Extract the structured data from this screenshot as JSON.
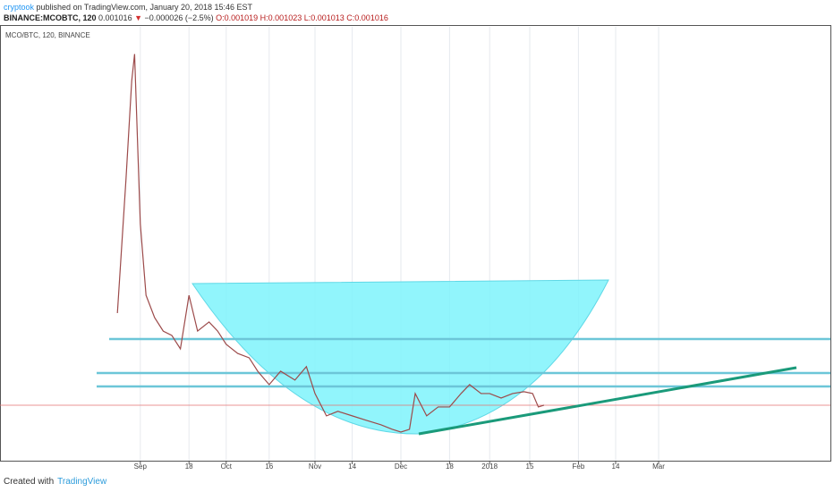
{
  "header": {
    "author": "cryptook",
    "published": "published on TradingView.com, January 20, 2018 15:46 EST",
    "symbol": "BINANCE:MCOBTC, 120",
    "last": "0.001016",
    "change": "−0.000026 (−2.5%)",
    "open": "O:0.001019",
    "high": "H:0.001023",
    "low": "L:0.001013",
    "close": "C:0.001016"
  },
  "footer": {
    "created": "Created with",
    "brand": "TradingView"
  },
  "chart_data": {
    "type": "line",
    "x": [
      "2017-08-24",
      "2017-08-27",
      "2017-08-29",
      "2017-08-30",
      "2017-09-01",
      "2017-09-03",
      "2017-09-06",
      "2017-09-09",
      "2017-09-12",
      "2017-09-15",
      "2017-09-18",
      "2017-09-21",
      "2017-09-25",
      "2017-09-28",
      "2017-10-01",
      "2017-10-05",
      "2017-10-09",
      "2017-10-12",
      "2017-10-16",
      "2017-10-20",
      "2017-10-25",
      "2017-10-29",
      "2017-11-01",
      "2017-11-05",
      "2017-11-09",
      "2017-11-14",
      "2017-11-19",
      "2017-11-24",
      "2017-11-28",
      "2017-12-01",
      "2017-12-04",
      "2017-12-06",
      "2017-12-10",
      "2017-12-14",
      "2017-12-18",
      "2017-12-22",
      "2017-12-25",
      "2017-12-29",
      "2018-01-01",
      "2018-01-05",
      "2018-01-09",
      "2018-01-13",
      "2018-01-16",
      "2018-01-18",
      "2018-01-20"
    ],
    "series": [
      {
        "name": "MCO/BTC, 120, BINANCE",
        "color": "#9c4a4a",
        "values": [
          0.001523,
          0.002261,
          0.002802,
          0.00295,
          0.002015,
          0.001621,
          0.001498,
          0.001424,
          0.0014,
          0.001326,
          0.001621,
          0.001424,
          0.001474,
          0.001424,
          0.001351,
          0.001301,
          0.001277,
          0.001203,
          0.001129,
          0.001203,
          0.001154,
          0.001228,
          0.00108,
          0.000957,
          0.000982,
          0.000957,
          0.000932,
          0.000908,
          0.000883,
          0.000868,
          0.000883,
          0.00108,
          0.000957,
          0.001006,
          0.001006,
          0.00108,
          0.001129,
          0.00108,
          0.00108,
          0.001055,
          0.00108,
          0.00109,
          0.00108,
          0.001006,
          0.001016
        ]
      }
    ],
    "xlim": [
      "2017-07-14",
      "2018-04-30"
    ],
    "ylim": [
      0.00071,
      0.0031
    ],
    "xticks": [
      {
        "value": "2017-09-01",
        "label": "Sep"
      },
      {
        "value": "2017-09-18",
        "label": "18"
      },
      {
        "value": "2017-10-01",
        "label": "Oct"
      },
      {
        "value": "2017-10-16",
        "label": "16"
      },
      {
        "value": "2017-11-01",
        "label": "Nov"
      },
      {
        "value": "2017-11-14",
        "label": "14"
      },
      {
        "value": "2017-12-01",
        "label": "Dec"
      },
      {
        "value": "2017-12-18",
        "label": "18"
      },
      {
        "value": "2018-01-01",
        "label": "2018"
      },
      {
        "value": "2018-01-15",
        "label": "15"
      },
      {
        "value": "2018-02-01",
        "label": "Feb"
      },
      {
        "value": "2018-02-14",
        "label": "14"
      },
      {
        "value": "2018-03-01",
        "label": "Mar"
      }
    ],
    "grid": true
  }
}
